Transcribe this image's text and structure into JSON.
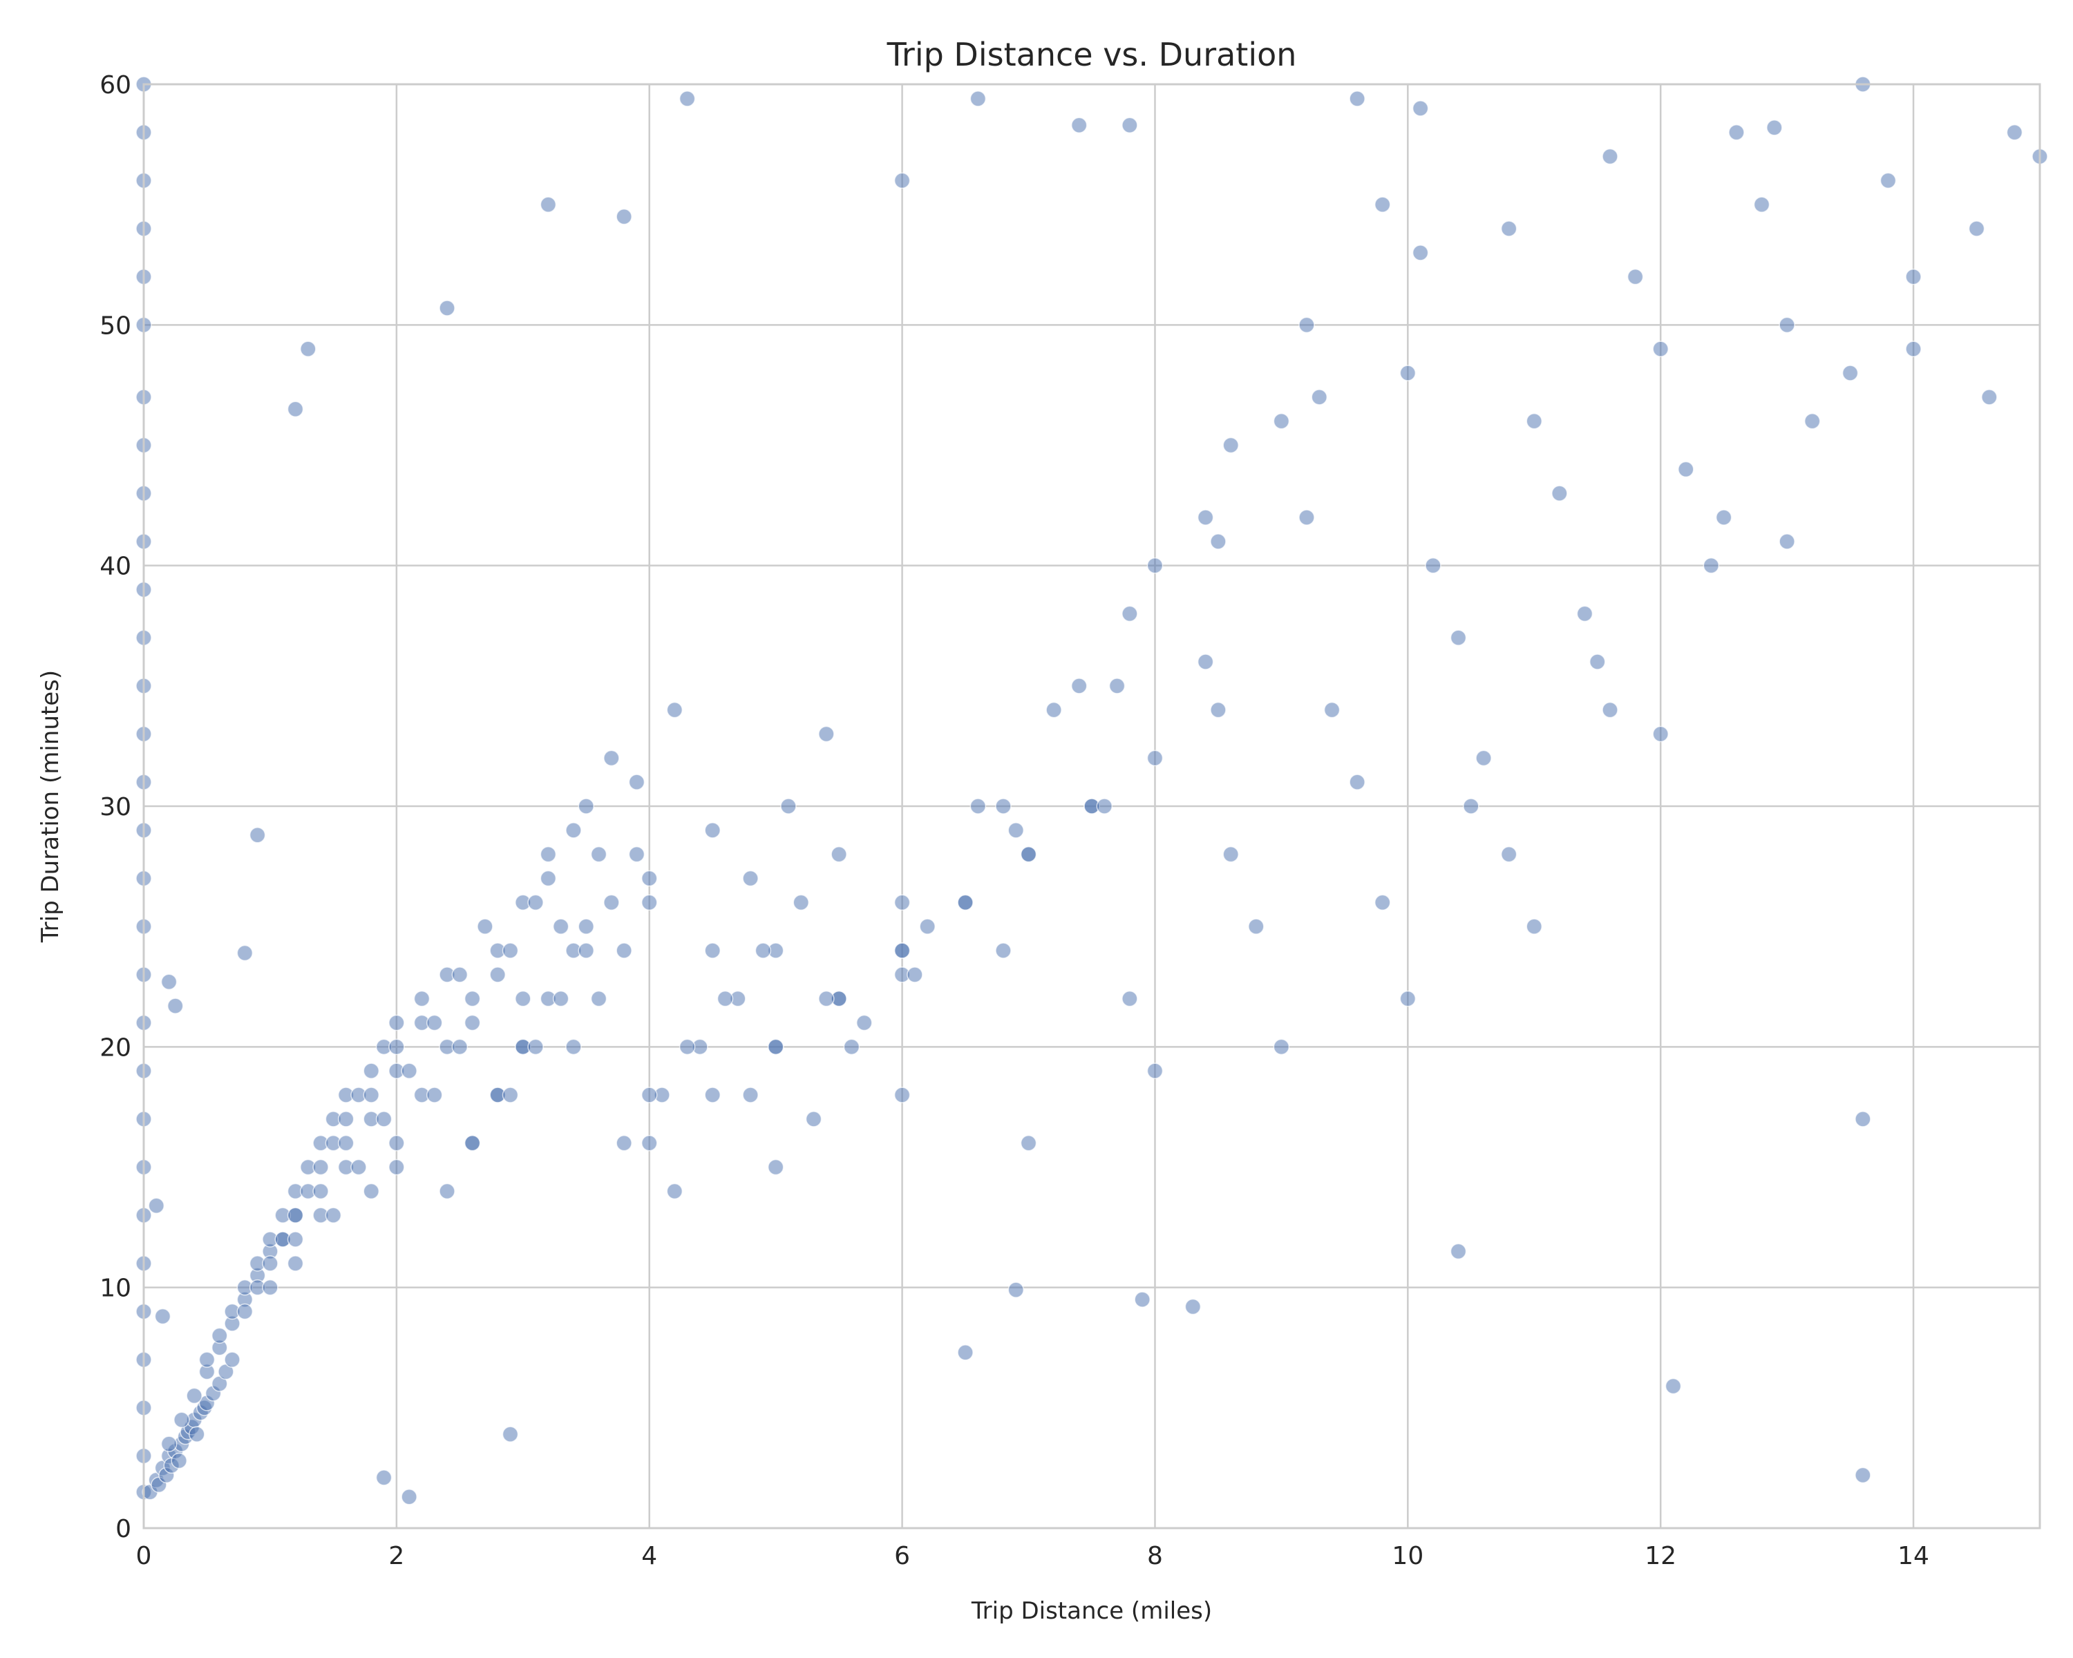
{
  "chart_data": {
    "type": "scatter",
    "title": "Trip Distance vs. Duration",
    "xlabel": "Trip Distance (miles)",
    "ylabel": "Trip Duration (minutes)",
    "xlim": [
      0,
      15
    ],
    "ylim": [
      0,
      60
    ],
    "x_ticks": [
      0,
      2,
      4,
      6,
      8,
      10,
      12,
      14
    ],
    "y_ticks": [
      0,
      10,
      20,
      30,
      40,
      50,
      60
    ],
    "grid": true,
    "legend": "none",
    "marker_color": "#4c72b0",
    "marker_edge_color": "#ffffff",
    "marker_opacity": 0.5,
    "series": [
      {
        "x": [
          0,
          0,
          0,
          0,
          0,
          0,
          0,
          0,
          0,
          0,
          0,
          0,
          0,
          0,
          0,
          0,
          0,
          0,
          0,
          0,
          0,
          0,
          0,
          0,
          0,
          0,
          0,
          0,
          0,
          0,
          0.05,
          0.1,
          0.12,
          0.15,
          0.18,
          0.2,
          0.22,
          0.25,
          0.28,
          0.3,
          0.33,
          0.35,
          0.38,
          0.4,
          0.42,
          0.45,
          0.48,
          0.5,
          0.55,
          0.6,
          0.65,
          0.7,
          0.2,
          0.3,
          0.4,
          0.5,
          0.6,
          0.7,
          0.8,
          0.9,
          1.0,
          1.1,
          1.2,
          0.5,
          0.6,
          0.7,
          0.8,
          0.9,
          1.0,
          1.1,
          1.2,
          1.3,
          1.4,
          1.5,
          1.6,
          0.8,
          0.9,
          1.0,
          1.1,
          1.2,
          1.3,
          1.4,
          1.5,
          1.6,
          1.7,
          1.8,
          1.9,
          2.0,
          1.0,
          1.2,
          1.4,
          1.6,
          1.8,
          2.0,
          2.2,
          2.4,
          2.6,
          2.8,
          3.0,
          1.2,
          1.4,
          1.6,
          1.8,
          2.0,
          2.2,
          2.4,
          2.6,
          2.8,
          3.0,
          3.2,
          3.4,
          1.5,
          1.7,
          1.9,
          2.1,
          2.3,
          2.5,
          2.7,
          2.9,
          3.1,
          3.3,
          3.5,
          3.7,
          3.9,
          1.8,
          2.0,
          2.2,
          2.4,
          2.6,
          2.8,
          3.0,
          3.2,
          3.4,
          3.6,
          3.8,
          4.0,
          2.0,
          2.3,
          2.6,
          2.9,
          3.2,
          3.5,
          3.8,
          4.1,
          4.4,
          4.7,
          5.0,
          2.5,
          2.8,
          3.1,
          3.4,
          3.7,
          4.0,
          4.3,
          4.6,
          4.9,
          5.2,
          5.5,
          3.0,
          3.3,
          3.6,
          3.9,
          4.2,
          4.5,
          4.8,
          5.1,
          5.4,
          5.7,
          6.0,
          3.5,
          4.0,
          4.5,
          5.0,
          5.5,
          6.0,
          6.5,
          7.0,
          7.5,
          4.0,
          4.5,
          5.0,
          5.5,
          6.0,
          6.5,
          7.0,
          7.5,
          8.0,
          8.5,
          4.2,
          4.8,
          5.4,
          6.0,
          6.6,
          7.2,
          7.8,
          8.4,
          9.0,
          5.0,
          5.6,
          6.2,
          6.8,
          7.4,
          8.0,
          8.6,
          9.2,
          9.8,
          5.3,
          6.1,
          6.9,
          7.7,
          8.5,
          9.3,
          10.1,
          6.0,
          6.8,
          7.6,
          8.4,
          9.2,
          10.0,
          10.8,
          11.6,
          7.0,
          7.8,
          8.6,
          9.4,
          10.2,
          11.0,
          11.8,
          12.6,
          8.0,
          8.8,
          9.6,
          10.4,
          11.2,
          12.0,
          12.8,
          13.6,
          9.0,
          9.8,
          10.6,
          11.4,
          12.2,
          13.0,
          13.8,
          14.6,
          10.0,
          10.8,
          11.6,
          12.4,
          13.2,
          14.0,
          14.8,
          10.5,
          11.5,
          12.5,
          13.5,
          14.5,
          11.0,
          12.0,
          13.0,
          14.0,
          15.0,
          1.3,
          1.2,
          2.4,
          3.2,
          3.8,
          4.3,
          6.0,
          6.6,
          7.4,
          7.8,
          9.6,
          10.1,
          12.9,
          12.1,
          13.6,
          13.6,
          1.9,
          2.1,
          2.9,
          6.5,
          6.9,
          7.9,
          8.3,
          10.4,
          0.8,
          0.9,
          0.2,
          0.25,
          0.1,
          0.15
        ],
        "y": [
          1.5,
          3,
          5,
          7,
          9,
          11,
          13,
          15,
          17,
          19,
          21,
          23,
          25,
          27,
          29,
          31,
          33,
          35,
          37,
          39,
          41,
          43,
          45,
          47,
          50,
          52,
          54,
          56,
          58,
          60,
          1.5,
          2,
          1.8,
          2.5,
          2.2,
          3,
          2.6,
          3.2,
          2.8,
          3.5,
          3.8,
          4,
          4.2,
          4.5,
          3.9,
          4.8,
          5,
          5.2,
          5.6,
          6,
          6.5,
          7,
          3.5,
          4.5,
          5.5,
          6.5,
          7.5,
          8.5,
          9.5,
          10.5,
          11.5,
          12,
          13,
          7,
          8,
          9,
          10,
          11,
          12,
          13,
          14,
          15,
          16,
          17,
          18,
          9,
          10,
          11,
          12,
          13,
          14,
          15,
          16,
          17,
          18,
          19,
          20,
          21,
          10,
          12,
          14,
          16,
          18,
          20,
          22,
          14,
          16,
          18,
          20,
          11,
          13,
          15,
          17,
          19,
          21,
          23,
          16,
          18,
          20,
          22,
          24,
          13,
          15,
          17,
          19,
          21,
          23,
          25,
          18,
          20,
          22,
          24,
          26,
          28,
          14,
          16,
          18,
          20,
          22,
          24,
          26,
          28,
          20,
          22,
          24,
          26,
          15,
          18,
          21,
          24,
          27,
          30,
          16,
          18,
          20,
          22,
          24,
          20,
          23,
          26,
          29,
          32,
          18,
          20,
          22,
          24,
          26,
          28,
          22,
          25,
          28,
          31,
          34,
          24,
          27,
          30,
          33,
          21,
          23,
          25,
          27,
          29,
          20,
          22,
          24,
          26,
          28,
          30,
          16,
          18,
          20,
          22,
          24,
          26,
          28,
          30,
          32,
          34,
          14,
          18,
          22,
          26,
          30,
          34,
          38,
          42,
          46,
          15,
          20,
          25,
          30,
          35,
          40,
          45,
          50,
          55,
          17,
          23,
          29,
          35,
          41,
          47,
          53,
          18,
          24,
          30,
          36,
          42,
          48,
          54,
          57,
          16,
          22,
          28,
          34,
          40,
          46,
          52,
          58,
          19,
          25,
          31,
          37,
          43,
          49,
          55,
          60,
          20,
          26,
          32,
          38,
          44,
          50,
          56,
          47,
          22,
          28,
          34,
          40,
          46,
          52,
          58,
          30,
          36,
          42,
          48,
          54,
          25,
          33,
          41,
          49,
          57,
          49,
          46.5,
          50.7,
          55,
          54.5,
          59.4,
          56,
          59.4,
          58.3,
          58.3,
          59.4,
          59,
          58.2,
          5.9,
          2.2,
          17,
          2.1,
          1.3,
          3.9,
          7.3,
          9.9,
          9.5,
          9.2,
          11.5,
          23.9,
          28.8,
          22.7,
          21.7,
          13.4,
          8.8
        ]
      }
    ]
  }
}
